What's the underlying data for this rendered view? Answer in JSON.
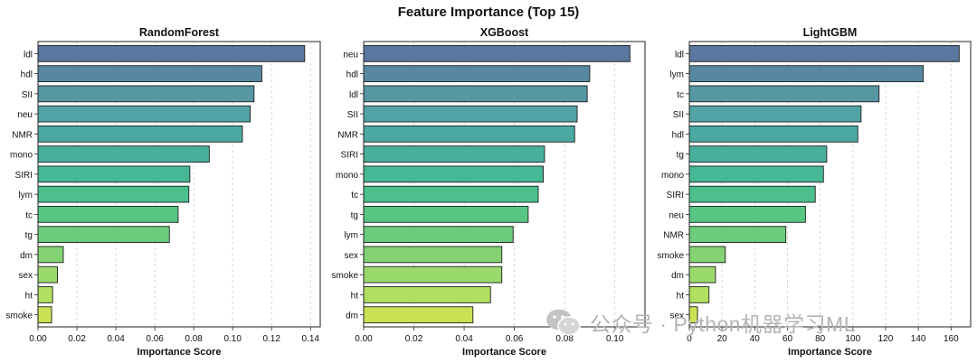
{
  "figure": {
    "title": "Feature Importance (Top 15)",
    "watermark": "公众号 · Python机器学习ML",
    "watermark_icon": "wechat-icon"
  },
  "chart_data": [
    {
      "type": "bar",
      "orientation": "horizontal",
      "title": "RandomForest",
      "xlabel": "Importance Score",
      "ylabel": "",
      "categories": [
        "ldl",
        "hdl",
        "SII",
        "neu",
        "NMR",
        "mono",
        "SIRI",
        "lym",
        "tc",
        "tg",
        "dm",
        "sex",
        "ht",
        "smoke"
      ],
      "values": [
        0.137,
        0.115,
        0.111,
        0.109,
        0.105,
        0.088,
        0.078,
        0.0775,
        0.072,
        0.0675,
        0.013,
        0.01,
        0.0075,
        0.007
      ],
      "xlim": [
        0,
        0.145
      ],
      "xticks": [
        0.0,
        0.02,
        0.04,
        0.06,
        0.08,
        0.1,
        0.12,
        0.14
      ],
      "tick_decimals": 2,
      "grid": "x-dashed"
    },
    {
      "type": "bar",
      "orientation": "horizontal",
      "title": "XGBoost",
      "xlabel": "Importance Score",
      "ylabel": "",
      "categories": [
        "neu",
        "hdl",
        "ldl",
        "SII",
        "NMR",
        "SIRI",
        "mono",
        "tc",
        "tg",
        "lym",
        "sex",
        "smoke",
        "ht",
        "dm"
      ],
      "values": [
        0.106,
        0.09,
        0.089,
        0.085,
        0.084,
        0.072,
        0.0715,
        0.0695,
        0.0655,
        0.0595,
        0.055,
        0.055,
        0.0505,
        0.0435
      ],
      "xlim": [
        0,
        0.112
      ],
      "xticks": [
        0.0,
        0.02,
        0.04,
        0.06,
        0.08,
        0.1
      ],
      "tick_decimals": 2,
      "tick_labels": [
        "0.00",
        "0.02",
        "0.04",
        "0.06",
        "0.08",
        "0.10"
      ],
      "grid": "x-dashed"
    },
    {
      "type": "bar",
      "orientation": "horizontal",
      "title": "LightGBM",
      "xlabel": "Importance Score",
      "ylabel": "",
      "categories": [
        "ldl",
        "lym",
        "tc",
        "SII",
        "hdl",
        "tg",
        "mono",
        "SIRI",
        "neu",
        "NMR",
        "smoke",
        "dm",
        "ht",
        "sex"
      ],
      "values": [
        165,
        143,
        116,
        105,
        103,
        84,
        82,
        77,
        71,
        59,
        22,
        16,
        12,
        5
      ],
      "xlim": [
        0,
        172
      ],
      "xticks": [
        0,
        20,
        40,
        60,
        80,
        100,
        120,
        140,
        160
      ],
      "tick_decimals": 0,
      "grid": "x-dashed"
    }
  ],
  "colors": {
    "bar_gradient": [
      "#5a779f",
      "#5888a0",
      "#5796a3",
      "#52a3a5",
      "#4ca9a1",
      "#49b09d",
      "#47b895",
      "#4cbf8c",
      "#58c583",
      "#6ccb7c",
      "#83d273",
      "#9ad96c",
      "#b2df60",
      "#c9e253"
    ],
    "bar_edge": "#1e1e1e",
    "grid": "#cfcfcf",
    "axis": "#222222"
  }
}
